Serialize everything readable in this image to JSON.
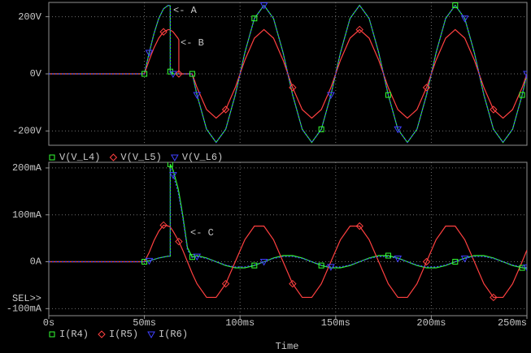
{
  "chart_data": [
    {
      "type": "line",
      "x": [
        0,
        50,
        52.5,
        55,
        57.5,
        60,
        62.5,
        63.5,
        63.5,
        65,
        67.5,
        68,
        68,
        70,
        72.5,
        75,
        77.5,
        82.5,
        87.5,
        92.5,
        97.5,
        102.5,
        107.5,
        112.5,
        117.5,
        122.5,
        127.5,
        132.5,
        137.5,
        142.5,
        147.5,
        152.5,
        157.5,
        162.5,
        167.5,
        172.5,
        177.5,
        182.5,
        187.5,
        192.5,
        197.5,
        202.5,
        207.5,
        212.5,
        217.5,
        222.5,
        227.5,
        232.5,
        237.5,
        242.5,
        247.5,
        250
      ],
      "series": [
        {
          "name": "V(V_L4)",
          "color": "#33ff33",
          "values": [
            0,
            0,
            74,
            141,
            194,
            228,
            240,
            238,
            8,
            0,
            0,
            0,
            0,
            0,
            0,
            0,
            -74,
            -194,
            -240,
            -194,
            -74,
            74,
            194,
            240,
            194,
            74,
            -74,
            -194,
            -240,
            -194,
            -74,
            74,
            194,
            240,
            194,
            74,
            -74,
            -194,
            -240,
            -194,
            -74,
            74,
            194,
            240,
            194,
            74,
            -74,
            -194,
            -240,
            -194,
            -74,
            0
          ]
        },
        {
          "name": "V(V_L5)",
          "color": "#ff4040",
          "values": [
            0,
            0,
            48,
            91,
            125,
            147,
            155,
            154,
            154,
            147,
            125,
            119,
            0,
            0,
            0,
            0,
            -48,
            -125,
            -155,
            -125,
            -48,
            48,
            125,
            155,
            125,
            48,
            -48,
            -125,
            -155,
            -125,
            -48,
            48,
            125,
            155,
            125,
            48,
            -48,
            -125,
            -155,
            -125,
            -48,
            48,
            125,
            155,
            125,
            48,
            -48,
            -125,
            -155,
            -125,
            -48,
            0
          ]
        },
        {
          "name": "V(V_L6)",
          "color": "#4040ff",
          "values": [
            0,
            0,
            74,
            141,
            194,
            228,
            240,
            238,
            0,
            0,
            0,
            0,
            0,
            0,
            0,
            0,
            -74,
            -194,
            -240,
            -194,
            -74,
            74,
            194,
            240,
            194,
            74,
            -74,
            -194,
            -240,
            -194,
            -74,
            74,
            194,
            240,
            194,
            74,
            -74,
            -194,
            -240,
            -194,
            -74,
            74,
            194,
            240,
            194,
            74,
            -74,
            -194,
            -240,
            -194,
            -74,
            0
          ]
        }
      ],
      "xlim": [
        0,
        250
      ],
      "ylim": [
        -250,
        250
      ],
      "yticks": [
        {
          "value": 200,
          "label": "200V"
        },
        {
          "value": 0,
          "label": "0V"
        },
        {
          "value": -200,
          "label": "-200V"
        }
      ],
      "grid": true,
      "annotations": [
        "<- A",
        "<- B"
      ]
    },
    {
      "type": "line",
      "x": [
        0,
        50,
        52.5,
        55,
        57.5,
        60,
        62.5,
        63.5,
        63.5,
        65,
        67.5,
        68,
        68,
        70,
        72.5,
        75,
        77.5,
        82.5,
        87.5,
        92.5,
        97.5,
        102.5,
        107.5,
        112.5,
        117.5,
        122.5,
        127.5,
        132.5,
        137.5,
        142.5,
        147.5,
        152.5,
        157.5,
        162.5,
        167.5,
        172.5,
        177.5,
        182.5,
        187.5,
        192.5,
        197.5,
        202.5,
        207.5,
        212.5,
        217.5,
        222.5,
        227.5,
        232.5,
        237.5,
        242.5,
        247.5,
        250
      ],
      "series": [
        {
          "name": "I(R4)",
          "color": "#33ff33",
          "values": [
            0,
            0,
            2,
            5,
            8,
            10,
            12,
            12,
            208,
            195,
            158,
            148,
            148,
            100,
            30,
            10,
            13,
            8,
            0,
            -8,
            -13,
            -13,
            -8,
            0,
            8,
            13,
            13,
            8,
            0,
            -8,
            -13,
            -13,
            -8,
            0,
            8,
            13,
            13,
            8,
            0,
            -8,
            -13,
            -13,
            -8,
            0,
            8,
            13,
            13,
            8,
            0,
            -8,
            -13,
            -14
          ]
        },
        {
          "name": "I(R5)",
          "color": "#ff4040",
          "values": [
            0,
            0,
            20,
            45,
            65,
            78,
            76,
            74,
            74,
            65,
            47,
            43,
            43,
            25,
            0,
            -25,
            -47,
            -76,
            -76,
            -47,
            0,
            47,
            76,
            76,
            47,
            0,
            -47,
            -76,
            -76,
            -47,
            0,
            47,
            76,
            76,
            47,
            0,
            -47,
            -76,
            -76,
            -47,
            0,
            47,
            76,
            76,
            47,
            0,
            -47,
            -76,
            -76,
            -47,
            0,
            25
          ]
        },
        {
          "name": "I(R6)",
          "color": "#4040ff",
          "values": [
            0,
            0,
            2,
            5,
            8,
            10,
            12,
            12,
            200,
            185,
            150,
            140,
            140,
            95,
            25,
            8,
            11,
            7,
            0,
            -7,
            -11,
            -11,
            -7,
            0,
            7,
            11,
            11,
            7,
            0,
            -7,
            -11,
            -11,
            -7,
            0,
            7,
            11,
            11,
            7,
            0,
            -7,
            -11,
            -11,
            -7,
            0,
            7,
            11,
            11,
            7,
            0,
            -7,
            -11,
            -12
          ]
        }
      ],
      "xlim": [
        0,
        250
      ],
      "xticks": [
        {
          "value": 0,
          "label": "0s"
        },
        {
          "value": 50,
          "label": "50ms"
        },
        {
          "value": 100,
          "label": "100ms"
        },
        {
          "value": 150,
          "label": "150ms"
        },
        {
          "value": 200,
          "label": "200ms"
        },
        {
          "value": 250,
          "label": "250ms"
        }
      ],
      "ylim": [
        -115,
        212
      ],
      "yticks": [
        {
          "value": 200,
          "label": "200mA"
        },
        {
          "value": 100,
          "label": "100mA"
        },
        {
          "value": 0,
          "label": "0A"
        },
        {
          "value": -100,
          "label": "-100mA"
        }
      ],
      "grid": true,
      "xlabel": "Time",
      "sel_label": "SEL>>",
      "annotations": [
        "<- C"
      ]
    }
  ]
}
